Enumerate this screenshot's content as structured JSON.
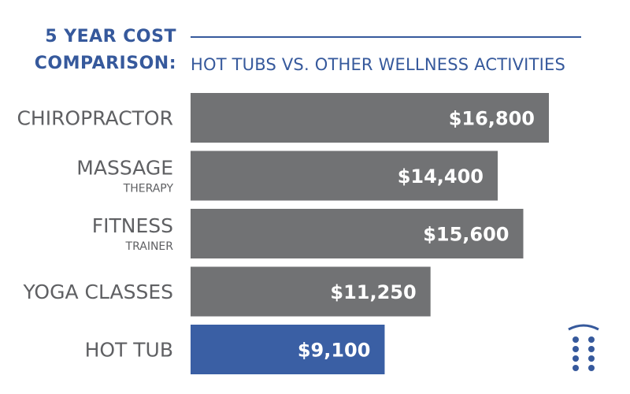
{
  "chart_data": {
    "type": "bar",
    "orientation": "horizontal",
    "title_line1": "5 YEAR COST",
    "title_line2": "COMPARISON:",
    "subtitle": "HOT TUBS VS. OTHER WELLNESS ACTIVITIES",
    "categories": [
      {
        "main": "CHIROPRACTOR",
        "sub": ""
      },
      {
        "main": "MASSAGE",
        "sub": "THERAPY"
      },
      {
        "main": "FITNESS",
        "sub": "TRAINER"
      },
      {
        "main": "YOGA CLASSES",
        "sub": ""
      },
      {
        "main": "HOT TUB",
        "sub": ""
      }
    ],
    "values": [
      16800,
      14400,
      15600,
      11250,
      9100
    ],
    "value_labels": [
      "$16,800",
      "$14,400",
      "$15,600",
      "$11,250",
      "$9,100"
    ],
    "highlight_index": 4,
    "grid": false,
    "legend": "none"
  },
  "colors": {
    "accent": "#36599c",
    "bar": "#717274",
    "highlight_bar": "#3a5fa4",
    "category_text": "#5f6063",
    "value_text": "#ffffff"
  },
  "logo": {
    "icon": "hot-tub-jets-icon"
  }
}
